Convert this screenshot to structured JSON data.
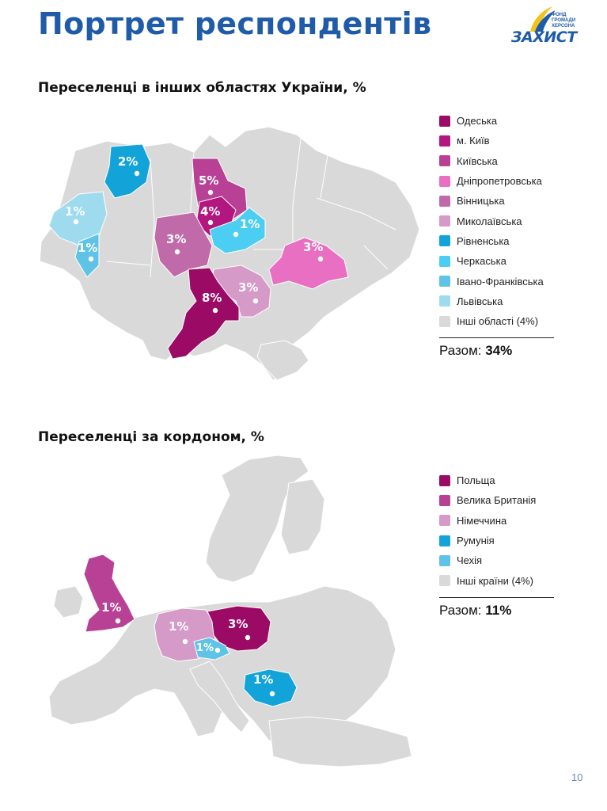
{
  "title": "Портрет респондентів",
  "logo": {
    "word": "ЗАХИСТ",
    "small": "ФОНД ГРОМАДИ ХЕРСОНА"
  },
  "ukraine": {
    "heading": "Переселенці в інших областях України, %",
    "legend": [
      {
        "label": "Одеська",
        "color": "#9b0a64"
      },
      {
        "label": "м. Київ",
        "color": "#b3167f"
      },
      {
        "label": "Київська",
        "color": "#b84196"
      },
      {
        "label": "Дніпропетровська",
        "color": "#e86fc2"
      },
      {
        "label": "Вінницька",
        "color": "#c16aa9"
      },
      {
        "label": "Миколаївська",
        "color": "#d59ac7"
      },
      {
        "label": "Рівненська",
        "color": "#12a4d9"
      },
      {
        "label": "Черкаська",
        "color": "#4ccdf2"
      },
      {
        "label": "Івано-Франківська",
        "color": "#5ec3e6"
      },
      {
        "label": "Львівська",
        "color": "#9edbee"
      },
      {
        "label": "Інші області (4%)",
        "color": "#d9d9d9"
      }
    ],
    "total_label": "Разом: ",
    "total_value": "34%",
    "labels": {
      "rivne": "2%",
      "lviv": "1%",
      "ivano": "1%",
      "kyivska": "5%",
      "kyiv": "4%",
      "cherkasy": "1%",
      "vinnytsia": "3%",
      "dnipro": "3%",
      "odesa": "8%",
      "mykolaiv": "3%"
    }
  },
  "europe": {
    "heading": "Переселенці за кордоном, %",
    "legend": [
      {
        "label": "Польща",
        "color": "#9b0a64"
      },
      {
        "label": "Велика Британія",
        "color": "#b84196"
      },
      {
        "label": "Німеччина",
        "color": "#d59ac7"
      },
      {
        "label": "Румунія",
        "color": "#12a4d9"
      },
      {
        "label": "Чехія",
        "color": "#5ec3e6"
      },
      {
        "label": "Інші країни (4%)",
        "color": "#d9d9d9"
      }
    ],
    "total_label": "Разом: ",
    "total_value": "11%",
    "labels": {
      "uk": "1%",
      "germany": "1%",
      "poland": "3%",
      "czech": "1%",
      "romania": "1%"
    }
  },
  "page_number": "10"
}
